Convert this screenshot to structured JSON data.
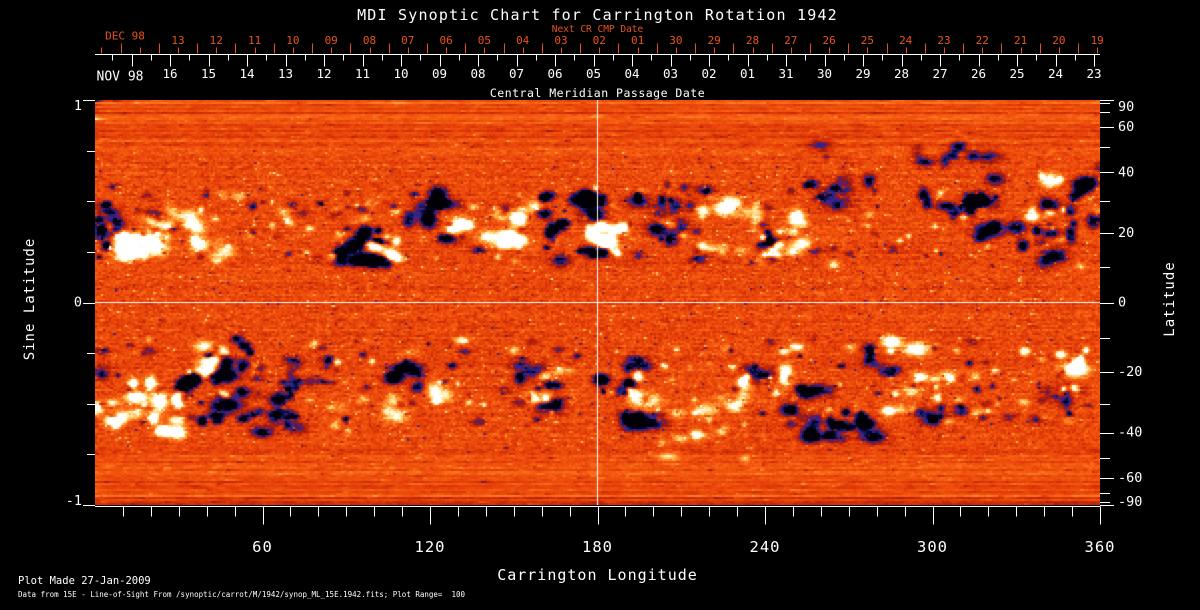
{
  "chart_data": {
    "type": "heatmap",
    "title": "MDI Synoptic Chart for Carrington Rotation 1942",
    "x_axis": {
      "label": "Carrington Longitude",
      "range": [
        0,
        360
      ],
      "major_ticks": [
        60,
        120,
        180,
        240,
        300,
        360
      ],
      "minor_step": 10
    },
    "y_axis_left": {
      "label": "Sine Latitude",
      "range": [
        -1,
        1
      ],
      "labeled_ticks": [
        1,
        0,
        -1
      ],
      "minor_step": 0.25
    },
    "y_axis_right": {
      "label": "Latitude",
      "labeled_ticks": [
        90,
        60,
        40,
        20,
        0,
        -20,
        -40,
        -60,
        -90
      ],
      "minor_step_deg": 10
    },
    "top_axis_red": {
      "label": "Next CR CMP Date",
      "month_label": "DEC 98",
      "days": [
        "13",
        "12",
        "11",
        "10",
        "09",
        "08",
        "07",
        "06",
        "05",
        "04",
        "03",
        "02",
        "01",
        "30",
        "29",
        "28",
        "27",
        "26",
        "25",
        "24",
        "23",
        "22",
        "21",
        "20",
        "19"
      ]
    },
    "top_axis_white": {
      "label": "Central Meridian Passage Date",
      "month_label": "NOV 98",
      "days": [
        "16",
        "15",
        "14",
        "13",
        "12",
        "11",
        "10",
        "09",
        "08",
        "07",
        "06",
        "05",
        "04",
        "03",
        "02",
        "01",
        "31",
        "30",
        "29",
        "28",
        "27",
        "26",
        "25",
        "24",
        "23"
      ]
    },
    "crosshair": {
      "longitude_deg": 180,
      "sine_latitude": 0
    },
    "colors": {
      "axis_red": "#e9541d",
      "axis_white": "#ffffff",
      "background": "#000000"
    },
    "colormap": {
      "stops": [
        [
          -1.0,
          0,
          0,
          6
        ],
        [
          -0.8,
          8,
          8,
          52
        ],
        [
          -0.58,
          38,
          38,
          148
        ],
        [
          -0.46,
          92,
          30,
          110
        ],
        [
          -0.34,
          140,
          24,
          28
        ],
        [
          -0.16,
          196,
          38,
          6
        ],
        [
          0.0,
          226,
          60,
          8
        ],
        [
          0.22,
          246,
          92,
          16
        ],
        [
          0.42,
          252,
          136,
          40
        ],
        [
          0.58,
          255,
          184,
          82
        ],
        [
          0.72,
          255,
          224,
          140
        ],
        [
          0.85,
          255,
          248,
          210
        ],
        [
          1.0,
          255,
          255,
          255
        ]
      ]
    },
    "active_regions": {
      "format": [
        "lon_start_deg",
        "lon_end_deg",
        "sinlat_start",
        "sinlat_end",
        "amplitude",
        "blob_count"
      ],
      "items": [
        [
          0,
          8,
          0.51,
          0.2,
          -1.3,
          10
        ],
        [
          4,
          15,
          0.41,
          0.24,
          1.6,
          8
        ],
        [
          16,
          48,
          0.48,
          0.19,
          0.8,
          26
        ],
        [
          19,
          29,
          0.45,
          0.31,
          -0.9,
          6
        ],
        [
          83,
          103,
          0.37,
          0.18,
          -1.5,
          14
        ],
        [
          99,
          111,
          0.33,
          0.22,
          1.5,
          7
        ],
        [
          112,
          131,
          0.58,
          0.31,
          -1.4,
          12
        ],
        [
          126,
          133,
          0.39,
          0.3,
          1.7,
          4
        ],
        [
          138,
          158,
          0.48,
          0.26,
          1.0,
          12
        ],
        [
          144,
          152,
          0.39,
          0.28,
          1.6,
          4
        ],
        [
          149,
          152,
          0.38,
          0.33,
          -1.0,
          2
        ],
        [
          160,
          182,
          0.55,
          0.2,
          -1.6,
          20
        ],
        [
          173,
          179,
          0.4,
          0.32,
          1.5,
          4
        ],
        [
          181,
          191,
          0.39,
          0.24,
          1.8,
          6
        ],
        [
          191,
          219,
          0.59,
          0.31,
          -1.2,
          16
        ],
        [
          217,
          239,
          0.53,
          0.25,
          0.8,
          16
        ],
        [
          237,
          257,
          0.43,
          0.19,
          1.5,
          9
        ],
        [
          237,
          245,
          0.4,
          0.2,
          -1.2,
          6
        ],
        [
          255,
          324,
          0.79,
          0.48,
          -1.0,
          22
        ],
        [
          301,
          324,
          0.55,
          0.35,
          -1.3,
          10
        ],
        [
          325,
          359,
          0.51,
          0.16,
          -1.2,
          14
        ],
        [
          335,
          348,
          0.64,
          0.42,
          1.3,
          7
        ],
        [
          351,
          360,
          0.7,
          0.51,
          -1.3,
          6
        ],
        [
          9,
          31,
          -0.39,
          -0.67,
          1.7,
          14
        ],
        [
          31,
          53,
          -0.36,
          -0.6,
          -1.9,
          12
        ],
        [
          33,
          48,
          -0.2,
          -0.36,
          1.4,
          8
        ],
        [
          45,
          56,
          -0.17,
          -0.31,
          -1.3,
          6
        ],
        [
          52,
          75,
          -0.37,
          -0.69,
          -1.1,
          14
        ],
        [
          68,
          84,
          -0.28,
          -0.48,
          -0.9,
          8
        ],
        [
          84,
          116,
          -0.46,
          -0.68,
          0.6,
          12
        ],
        [
          105,
          118,
          -0.28,
          -0.44,
          -1.2,
          8
        ],
        [
          121,
          126,
          -0.42,
          -0.49,
          1.2,
          3
        ],
        [
          149,
          167,
          -0.31,
          -0.54,
          -1.3,
          12
        ],
        [
          155,
          162,
          -0.34,
          -0.48,
          1.4,
          4
        ],
        [
          181,
          202,
          -0.24,
          -0.62,
          -1.4,
          14
        ],
        [
          190,
          198,
          -0.34,
          -0.49,
          1.4,
          4
        ],
        [
          202,
          238,
          -0.46,
          -0.78,
          0.7,
          16
        ],
        [
          223,
          249,
          -0.29,
          -0.54,
          1.3,
          10
        ],
        [
          234,
          241,
          -0.32,
          -0.42,
          -1.1,
          4
        ],
        [
          249,
          281,
          -0.42,
          -0.69,
          -1.3,
          18
        ],
        [
          262,
          275,
          -0.54,
          -0.67,
          -1.6,
          6
        ],
        [
          277,
          290,
          -0.21,
          -0.36,
          -0.9,
          6
        ],
        [
          281,
          308,
          -0.19,
          -0.58,
          1.2,
          14
        ],
        [
          299,
          312,
          -0.46,
          -0.6,
          -1.0,
          6
        ],
        [
          344,
          360,
          -0.24,
          -0.46,
          1.6,
          8
        ],
        [
          338,
          351,
          -0.42,
          -0.58,
          -0.9,
          5
        ],
        [
          0,
          16,
          -0.43,
          -0.63,
          1.1,
          6
        ],
        [
          0,
          9,
          -0.24,
          -0.38,
          -0.8,
          4
        ]
      ]
    },
    "speckle_bands": [
      [
        0.18,
        0.58
      ],
      [
        -0.6,
        -0.18
      ]
    ],
    "footer": {
      "line1": "Plot Made 27-Jan-2009",
      "line2": "Data from 15E - Line-of-Sight From /synoptic/carrot/M/1942/synop_ML_15E.1942.fits; Plot Range=  100"
    }
  }
}
